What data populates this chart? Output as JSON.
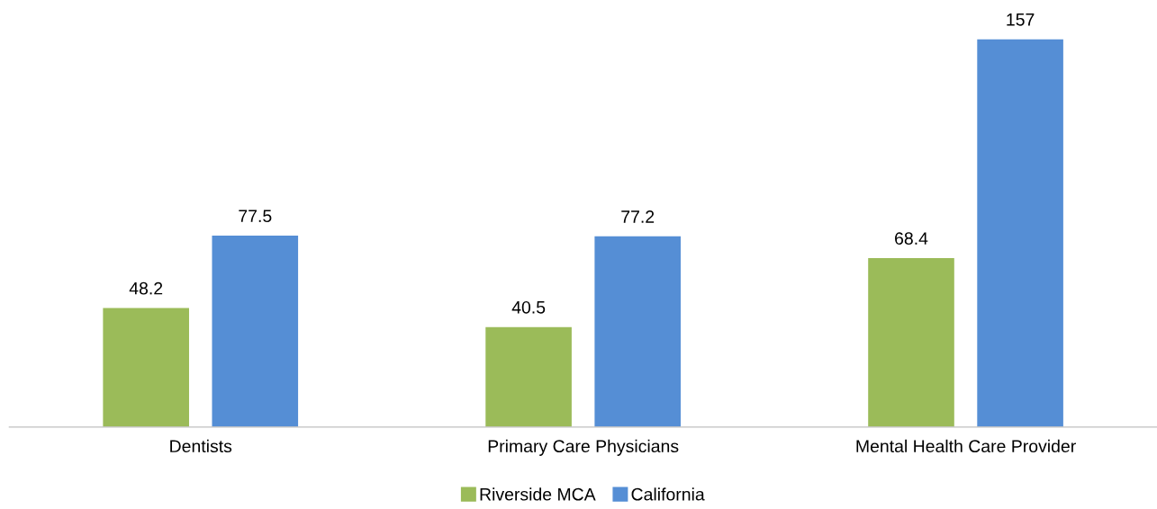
{
  "chart_data": {
    "type": "bar",
    "categories": [
      "Dentists",
      "Primary Care Physicians",
      "Mental Health Care Provider"
    ],
    "series": [
      {
        "name": "Riverside MCA",
        "color": "#9bbb59",
        "values": [
          48.2,
          40.5,
          68.4
        ]
      },
      {
        "name": "California",
        "color": "#558ed5",
        "values": [
          77.5,
          77.2,
          157
        ]
      }
    ],
    "data_labels": true,
    "relative": false,
    "grid": false,
    "legend": "bottom"
  }
}
